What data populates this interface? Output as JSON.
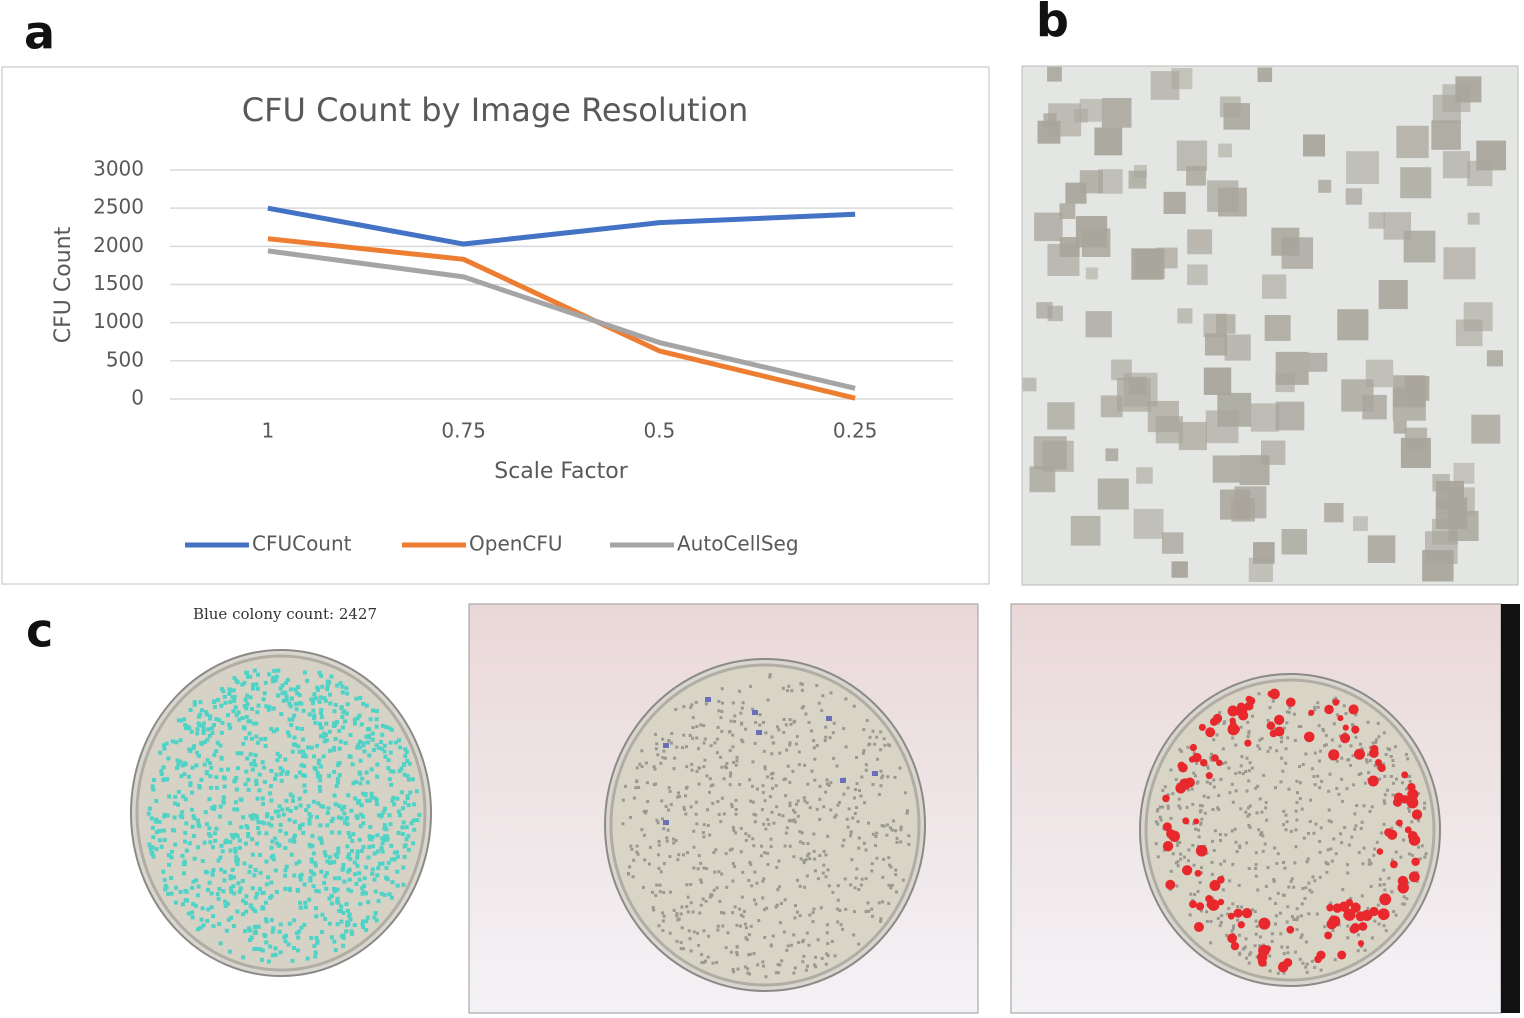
{
  "chart_data": {
    "type": "line",
    "title": "CFU Count by Image Resolution",
    "x_label": "Scale Factor",
    "y_label": "CFU Count",
    "categories": [
      "1",
      "0.75",
      "0.5",
      "0.25"
    ],
    "series": [
      {
        "name": "CFUCount",
        "color": "#4472c4",
        "values": [
          2500,
          2030,
          2310,
          2420
        ]
      },
      {
        "name": "OpenCFU",
        "color": "#ed7d31",
        "values": [
          2100,
          1830,
          630,
          10
        ]
      },
      {
        "name": "AutoCellSeg",
        "color": "#a5a5a5",
        "values": [
          1940,
          1600,
          740,
          140
        ]
      }
    ],
    "ylim": [
      0,
      3000
    ],
    "yticks": [
      0,
      500,
      1000,
      1500,
      2000,
      2500,
      3000
    ],
    "grid": true,
    "legend": "bottom"
  },
  "panels": [
    {
      "label": "a"
    },
    {
      "label": "b"
    },
    {
      "label": "c",
      "caption": "Blue colony count: 2427"
    }
  ]
}
